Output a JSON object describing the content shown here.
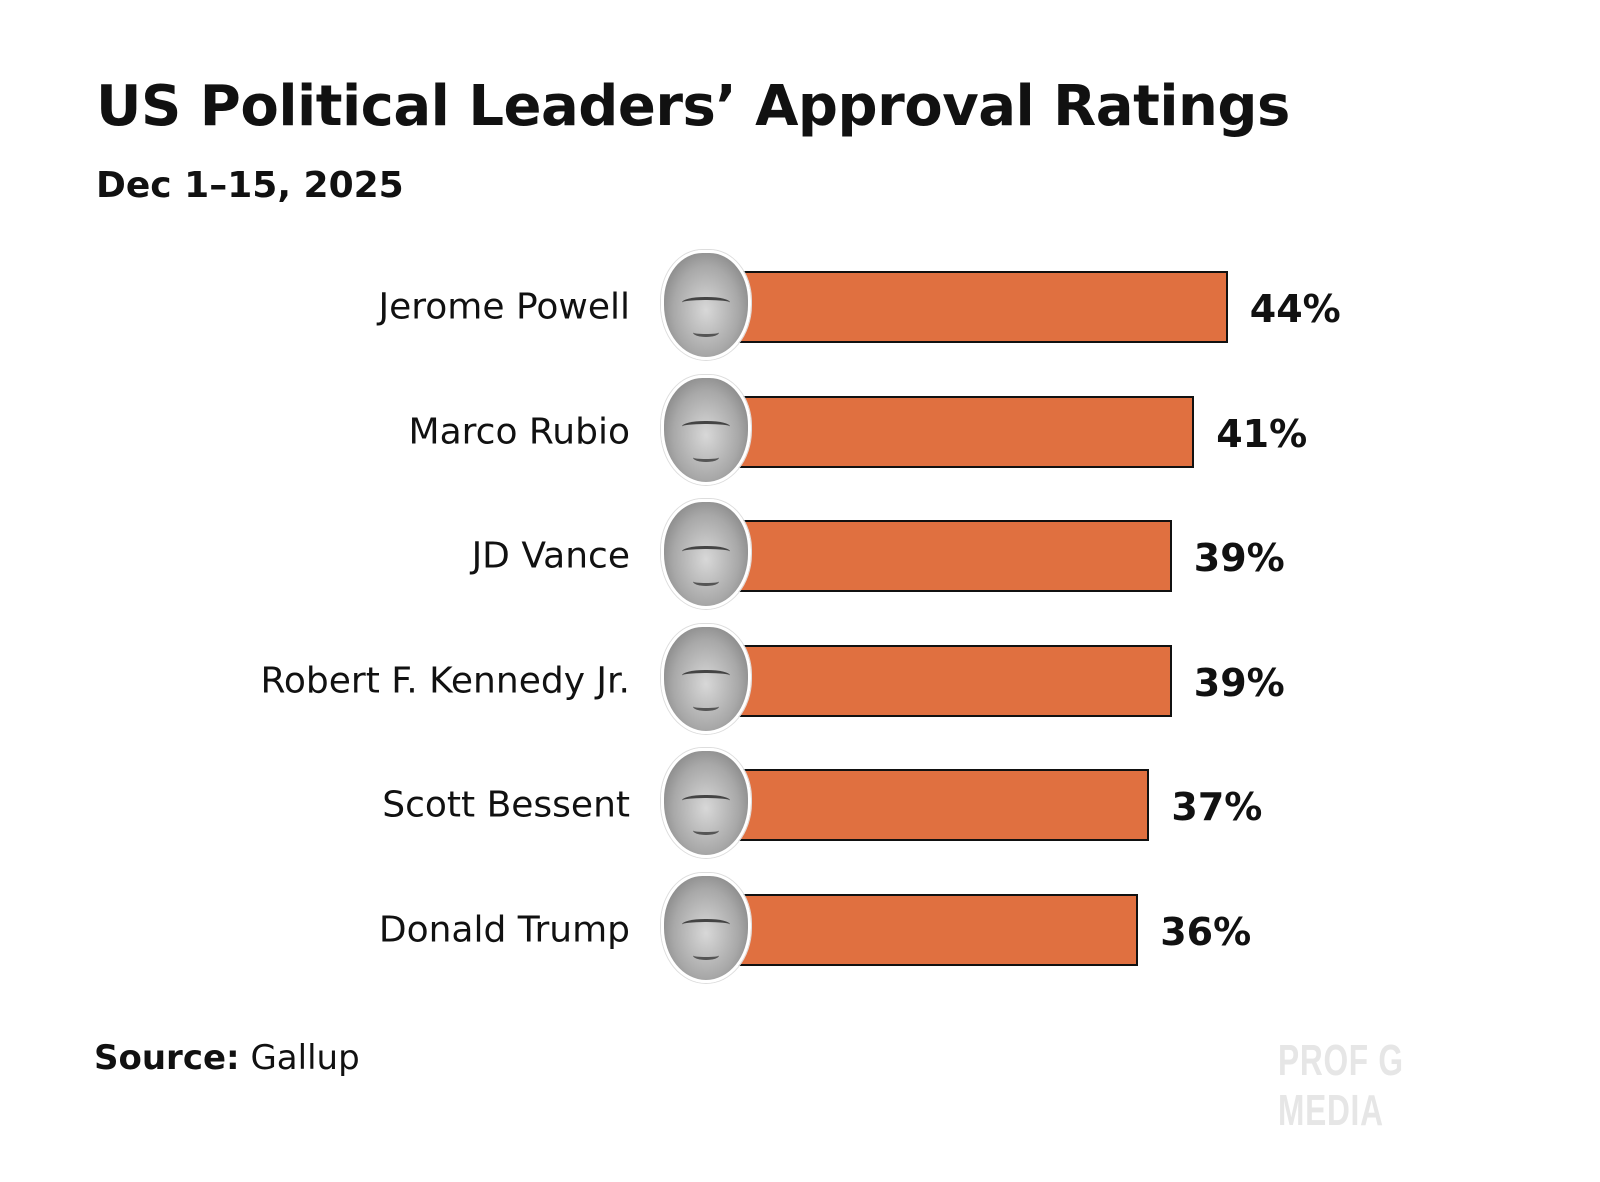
{
  "chart_data": {
    "type": "bar",
    "orientation": "horizontal",
    "title": "US Political Leaders’ Approval Ratings",
    "subtitle": "Dec 1–15, 2025",
    "categories": [
      "Jerome Powell",
      "Marco Rubio",
      "JD Vance",
      "Robert F. Kennedy Jr.",
      "Scott Bessent",
      "Donald Trump"
    ],
    "values": [
      44,
      41,
      39,
      39,
      37,
      36
    ],
    "value_labels": [
      "44%",
      "41%",
      "39%",
      "39%",
      "37%",
      "36%"
    ],
    "xlabel": "",
    "ylabel": "",
    "xlim": [
      0,
      100
    ],
    "grid": false,
    "bar_color": "#E07040"
  },
  "source": {
    "label": "Source:",
    "value": "Gallup"
  },
  "watermark": "PROF G MEDIA"
}
